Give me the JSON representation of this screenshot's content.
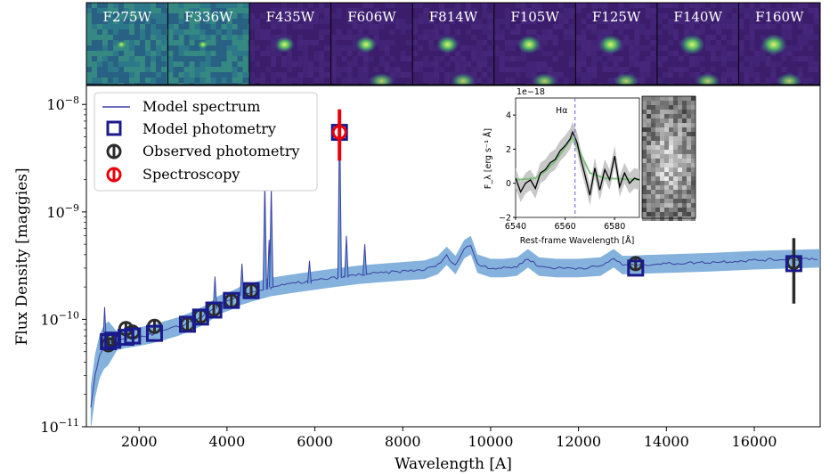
{
  "cutouts": {
    "bands": [
      "F275W",
      "F336W",
      "F435W",
      "F606W",
      "F814W",
      "F105W",
      "F125W",
      "F140W",
      "F160W"
    ]
  },
  "colors": {
    "model_line": "#3a3fa0",
    "model_band": "#6fa4d6",
    "model_phot": "#1a1a8c",
    "observed": "#2b2b2b",
    "spectroscopy": "#e8000b",
    "inset_fill": "#c8c8c8",
    "inset_model": "#7fbf7f",
    "halpha_line": "#6a5acd"
  },
  "chart_data": [
    {
      "type": "line",
      "title": "",
      "xlabel": "Wavelength [A]",
      "ylabel": "Flux Density [maggies]",
      "xlim": [
        800,
        17500
      ],
      "ylim": [
        1e-11,
        1.5e-08
      ],
      "yscale": "log",
      "xticks": [
        2000,
        4000,
        6000,
        8000,
        10000,
        12000,
        14000,
        16000
      ],
      "xtick_labels": [
        "2000",
        "4000",
        "6000",
        "8000",
        "10000",
        "12000",
        "14000",
        "16000"
      ],
      "yticks": [
        1e-11,
        1e-10,
        1e-09,
        1e-08
      ],
      "ytick_labels": [
        {
          "base": "10",
          "exp": "−11"
        },
        {
          "base": "10",
          "exp": "−10"
        },
        {
          "base": "10",
          "exp": "−9"
        },
        {
          "base": "10",
          "exp": "−8"
        }
      ],
      "legend": {
        "position": "top-left",
        "entries": [
          "Model spectrum",
          "Model photometry",
          "Observed photometry",
          "Spectroscopy"
        ]
      },
      "series": [
        {
          "name": "Model spectrum",
          "x": [
            900,
            1000,
            1100,
            1200,
            1300,
            1500,
            1700,
            2000,
            2300,
            2600,
            2900,
            3200,
            3500,
            3700,
            3800,
            3900,
            4100,
            4300,
            4600,
            4800,
            5000,
            5500,
            6000,
            6500,
            7000,
            7500,
            8000,
            8500,
            8800,
            9000,
            9200,
            9400,
            9550,
            9700,
            10000,
            10300,
            10600,
            10850,
            11100,
            11500,
            12000,
            12500,
            12800,
            13000,
            13200,
            13500,
            14000,
            15000,
            16000,
            17000,
            17500
          ],
          "y": [
            1.5e-11,
            3e-11,
            4.5e-11,
            5.5e-11,
            6e-11,
            6.3e-11,
            6.6e-11,
            6.9e-11,
            7.3e-11,
            7.9e-11,
            8.6e-11,
            9.6e-11,
            1.1e-10,
            1.25e-10,
            1.35e-10,
            1.4e-10,
            1.5e-10,
            1.65e-10,
            1.8e-10,
            1.9e-10,
            2e-10,
            2.15e-10,
            2.3e-10,
            2.45e-10,
            2.6e-10,
            2.7e-10,
            2.8e-10,
            2.9e-10,
            3.2e-10,
            3.9e-10,
            3.2e-10,
            4.5e-10,
            4.9e-10,
            3.3e-10,
            3e-10,
            3e-10,
            3.1e-10,
            3.7e-10,
            3.1e-10,
            3e-10,
            3e-10,
            3.1e-10,
            3.7e-10,
            3.2e-10,
            3.2e-10,
            3.25e-10,
            3.3e-10,
            3.4e-10,
            3.55e-10,
            3.65e-10,
            3.7e-10
          ]
        },
        {
          "name": "Emission lines",
          "x": [
            1216,
            3727,
            4340,
            4861,
            4959,
            5007,
            5876,
            6563,
            6717,
            7136
          ],
          "y": [
            1.3e-10,
            2.5e-10,
            3.3e-10,
            1.9e-09,
            5.5e-10,
            1.7e-09,
            3.5e-10,
            9e-09,
            6e-10,
            5e-10
          ]
        },
        {
          "name": "Model photometry",
          "x": [
            1300,
            1400,
            1700,
            1850,
            2350,
            3100,
            3400,
            3700,
            4100,
            4550,
            6560,
            13300,
            16900
          ],
          "y": [
            6.2e-11,
            6.4e-11,
            6.8e-11,
            7e-11,
            7.4e-11,
            9e-11,
            1.05e-10,
            1.22e-10,
            1.5e-10,
            1.85e-10,
            5.5e-09,
            3e-10,
            3.3e-10
          ]
        },
        {
          "name": "Observed photometry",
          "x": [
            1300,
            1400,
            1700,
            1850,
            2350,
            3100,
            3400,
            3700,
            4100,
            4550,
            13300,
            16900
          ],
          "y": [
            5.8e-11,
            6.5e-11,
            8.2e-11,
            7.6e-11,
            8.6e-11,
            9e-11,
            1.07e-10,
            1.24e-10,
            1.48e-10,
            1.85e-10,
            3.3e-10,
            3.4e-10
          ],
          "yerr_low": [
            0,
            0,
            0,
            0,
            0,
            0,
            0,
            0,
            0,
            0,
            0,
            2e-10
          ],
          "yerr_high": [
            0,
            0,
            0,
            0,
            0,
            0,
            0,
            0,
            0,
            0,
            0,
            2.3e-10
          ]
        },
        {
          "name": "Spectroscopy",
          "x": [
            6560
          ],
          "y": [
            5.5e-09
          ],
          "yerr_low": [
            2.5e-09
          ],
          "yerr_high": [
            3.5e-09
          ]
        }
      ]
    },
    {
      "type": "line",
      "title": "Hα",
      "xlabel": "Rest-frame Wavelength [Å]",
      "ylabel": "F_λ [erg s⁻¹ Å]",
      "scale_label": "1e−18",
      "xlim": [
        6540,
        6590
      ],
      "ylim": [
        -2,
        5
      ],
      "xticks": [
        6540,
        6560,
        6580
      ],
      "yticks": [
        -2,
        0,
        2,
        4
      ],
      "vline": 6564,
      "series": [
        {
          "name": "Observed spectrum",
          "x": [
            6540,
            6542,
            6544,
            6546,
            6548,
            6550,
            6552,
            6554,
            6556,
            6558,
            6560,
            6562,
            6563,
            6564,
            6565,
            6566,
            6568,
            6570,
            6572,
            6574,
            6576,
            6578,
            6580,
            6582,
            6584,
            6586,
            6588,
            6590
          ],
          "y": [
            0.3,
            -0.5,
            0.0,
            0.2,
            -0.3,
            0.6,
            0.8,
            1.2,
            1.4,
            1.9,
            2.2,
            2.6,
            3.0,
            2.7,
            2.3,
            1.6,
            0.5,
            -0.7,
            0.9,
            -0.4,
            0.8,
            0.2,
            1.6,
            -0.2,
            0.6,
            0.0,
            0.3,
            0.2
          ]
        },
        {
          "name": "Model",
          "x": [
            6540,
            6548,
            6552,
            6556,
            6560,
            6563,
            6566,
            6570,
            6576,
            6590
          ],
          "y": [
            0.2,
            0.3,
            0.7,
            1.3,
            2.1,
            2.7,
            1.8,
            0.6,
            0.3,
            0.2
          ]
        }
      ]
    }
  ]
}
